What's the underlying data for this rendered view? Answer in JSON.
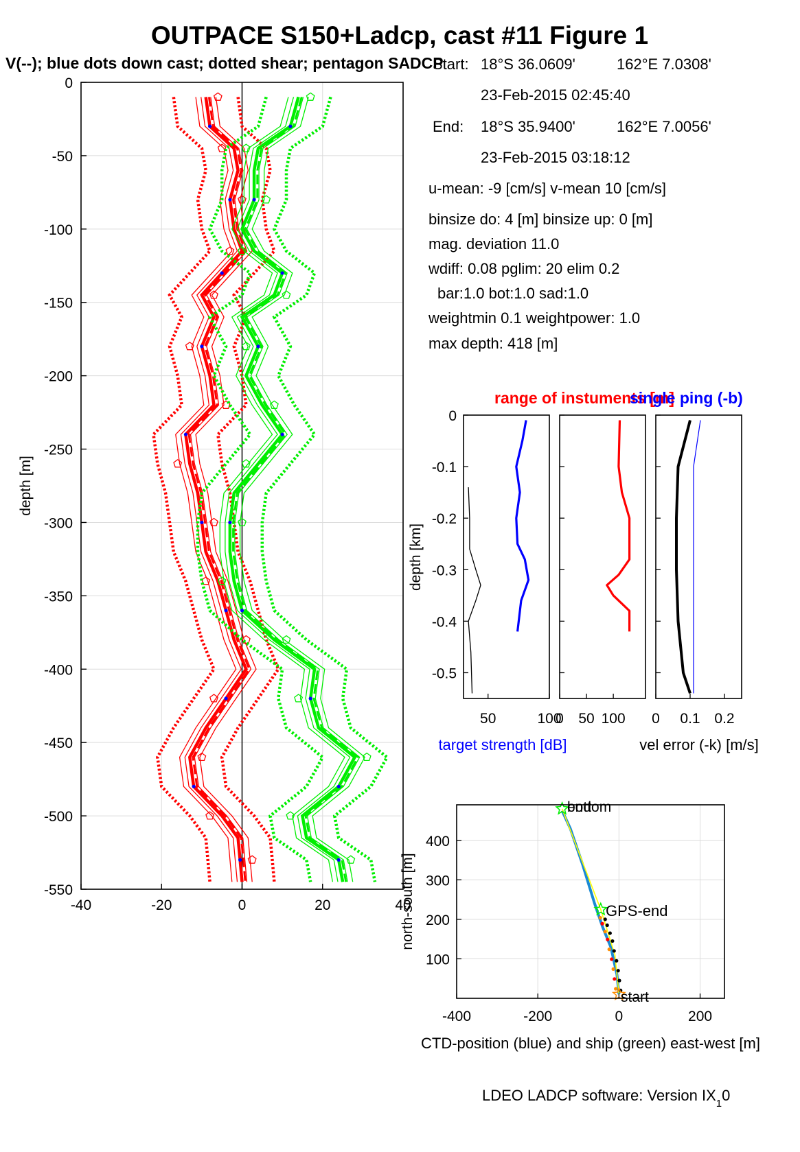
{
  "title": "OUTPACE S150+Ladcp, cast #11  Figure 1",
  "subtitle": "V(--); blue dots down cast; dotted shear; pentagon SADCP",
  "colors": {
    "u": "#ff0000",
    "v": "#00ee00",
    "blue": "#0000ff",
    "black": "#000000",
    "cyan": "#1a8ad4",
    "yellow": "#ffff00"
  },
  "info": {
    "start_label": "Start:",
    "start_lat": "18°S 36.0609'",
    "start_lon": "162°E  7.0308'",
    "start_time": "23-Feb-2015 02:45:40",
    "end_label": "End:",
    "end_lat": "18°S 35.9400'",
    "end_lon": "162°E  7.0056'",
    "end_time": "23-Feb-2015 03:18:12",
    "means": "u-mean:  -9 [cm/s]    v-mean  10 [cm/s]",
    "binsize": "binsize do: 4 [m]  binsize up:  0 [m]",
    "magdev": "mag. deviation 11.0",
    "wdiff": "wdiff: 0.08  pglim: 20  elim 0.2",
    "bar": "bar:1.0 bot:1.0 sad:1.0",
    "weight": "weightmin 0.1  weightpower: 1.0",
    "maxdepth": "max depth: 418 [m]"
  },
  "footer": "LDEO LADCP software: Version IX",
  "footer_sub": "1",
  "footer_tail": "0",
  "chart_data": [
    {
      "id": "velocity-profile",
      "type": "line",
      "xlim": [
        -40,
        40
      ],
      "ylim": [
        -550,
        0
      ],
      "x_ticks": [
        "-40",
        "-20",
        "0",
        "20",
        "40"
      ],
      "y_ticks": [
        "0",
        "-50",
        "-100",
        "-150",
        "-200",
        "-250",
        "-300",
        "-350",
        "-400",
        "-450",
        "-500",
        "-550"
      ],
      "ylabel": "depth [m]",
      "grid": true,
      "depth": [
        -10,
        -30,
        -45,
        -60,
        -80,
        -100,
        -115,
        -130,
        -145,
        -160,
        -180,
        -200,
        -220,
        -240,
        -260,
        -280,
        -300,
        -320,
        -340,
        -360,
        -380,
        -400,
        -420,
        -440,
        -460,
        -480,
        -500,
        -515,
        -530,
        -545
      ],
      "series": [
        {
          "values": [
            -9,
            -8,
            -2,
            -1,
            -3,
            -2,
            0,
            -5,
            -10,
            -7,
            -10,
            -8,
            -7,
            -14,
            -13,
            -11,
            -10,
            -9,
            -6,
            -4,
            -2,
            1,
            -4,
            -9,
            -13,
            -12,
            -5,
            -1,
            -0.5,
            0
          ]
        },
        {
          "values": [
            14,
            12,
            4,
            3,
            3,
            0,
            3,
            10,
            8,
            0,
            4,
            1,
            5,
            10,
            4,
            -2,
            -3,
            -3,
            -2,
            0,
            8,
            18,
            17,
            19,
            28,
            24,
            15,
            16,
            24,
            25
          ]
        }
      ]
    },
    {
      "id": "target-strength",
      "type": "line",
      "xlim": [
        30,
        100
      ],
      "ylim": [
        -0.55,
        0
      ],
      "x_ticks": [
        "50",
        "100"
      ],
      "y_ticks": [
        "0",
        "-0.1",
        "-0.2",
        "-0.3",
        "-0.4",
        "-0.5"
      ],
      "ylabel": "depth [km]",
      "xlabel": "target strength [dB]",
      "series": [
        {
          "name": "single ping (-b)",
          "depth": [
            -0.01,
            -0.05,
            -0.1,
            -0.15,
            -0.2,
            -0.25,
            -0.28,
            -0.32,
            -0.36,
            -0.42
          ],
          "values": [
            81,
            78,
            73,
            76,
            73,
            74,
            80,
            83,
            77,
            74
          ]
        },
        {
          "depth": [
            -0.14,
            -0.2,
            -0.26,
            -0.3,
            -0.33,
            -0.36,
            -0.4,
            -0.46,
            -0.54
          ],
          "values": [
            34,
            35,
            35,
            40,
            44,
            40,
            34,
            36,
            37
          ]
        }
      ]
    },
    {
      "id": "instrument-range",
      "type": "line",
      "title": "range of instuments [m]",
      "xlim": [
        0,
        160
      ],
      "ylim": [
        -0.55,
        0
      ],
      "x_ticks": [
        "0",
        "50",
        "100"
      ],
      "series": [
        {
          "depth": [
            -0.01,
            -0.1,
            -0.15,
            -0.2,
            -0.28,
            -0.31,
            -0.33,
            -0.35,
            -0.38,
            -0.42
          ],
          "values": [
            112,
            110,
            116,
            130,
            130,
            110,
            88,
            100,
            130,
            130
          ]
        }
      ]
    },
    {
      "id": "velocity-error",
      "type": "line",
      "xlim": [
        0,
        0.25
      ],
      "ylim": [
        -0.55,
        0
      ],
      "x_ticks": [
        "0",
        "0.1",
        "0.2"
      ],
      "xlabel": "vel error (-k) [m/s]",
      "series": [
        {
          "depth": [
            -0.01,
            -0.1,
            -0.2,
            -0.3,
            -0.4,
            -0.5,
            -0.54
          ],
          "values": [
            0.1,
            0.065,
            0.06,
            0.06,
            0.065,
            0.08,
            0.1
          ]
        },
        {
          "depth": [
            -0.01,
            -0.1,
            -0.2,
            -0.3,
            -0.4,
            -0.5,
            -0.54
          ],
          "values": [
            0.13,
            0.11,
            0.11,
            0.11,
            0.11,
            0.11,
            0.11
          ]
        }
      ]
    },
    {
      "id": "ship-track",
      "type": "line",
      "xlim": [
        -400,
        260
      ],
      "ylim": [
        0,
        490
      ],
      "x_ticks": [
        "-400",
        "-200",
        "0",
        "200"
      ],
      "y_ticks": [
        "100",
        "200",
        "300",
        "400"
      ],
      "xlabel": "CTD-position (blue) and ship (green) east-west [m]",
      "ylabel": "north-south [m]",
      "annotations": [
        "bottom",
        "end",
        "GPS-end",
        "start"
      ],
      "series": [
        {
          "x": [
            0,
            -5,
            -20,
            -40,
            -60,
            -90,
            -120,
            -140
          ],
          "values": [
            10,
            60,
            130,
            180,
            240,
            340,
            430,
            475
          ]
        },
        {
          "x": [
            0,
            -10,
            -45,
            -140
          ],
          "values": [
            10,
            110,
            225,
            480
          ]
        }
      ]
    }
  ]
}
